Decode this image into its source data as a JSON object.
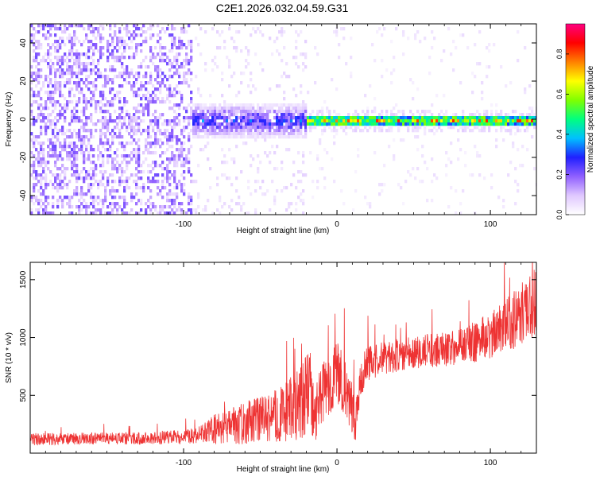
{
  "title": "C2E1.2026.032.04.59.G31",
  "chart_data": [
    {
      "type": "heatmap",
      "title": "",
      "xlabel": "Height of straight line (km)",
      "ylabel": "Frequency (Hz)",
      "xlim": [
        -200,
        130
      ],
      "ylim": [
        -50,
        50
      ],
      "xticks": [
        -100,
        0,
        100
      ],
      "xtick_labels": [
        "-100",
        "0",
        "100"
      ],
      "yticks": [
        -40,
        -20,
        0,
        20,
        40
      ],
      "ytick_labels": [
        "-40",
        "-20",
        "0",
        "20",
        "40"
      ],
      "colorbar": {
        "label": "Normalized spectral amplitude",
        "range": [
          0,
          0.95
        ],
        "ticks": [
          0.0,
          0.2,
          0.4,
          0.6,
          0.8
        ],
        "tick_labels": [
          "0.0",
          "0.2",
          "0.4",
          "0.6",
          "0.8"
        ],
        "colormap": [
          "#ffffff",
          "#e0c8ff",
          "#9060ff",
          "#2020ff",
          "#00c0ff",
          "#00ff80",
          "#80ff00",
          "#ffff00",
          "#ff8000",
          "#ff0000",
          "#ff0080"
        ]
      },
      "regions": [
        {
          "x_range": [
            -200,
            -95
          ],
          "freq_spread": 50,
          "amplitude": 0.08,
          "description_color": "#6a1bff"
        },
        {
          "x_range": [
            -95,
            -20
          ],
          "freq_spread": 10,
          "amplitude": 0.25
        },
        {
          "x_range": [
            -20,
            130
          ],
          "freq_spread": 3,
          "amplitude": 0.6
        }
      ],
      "grid": false
    },
    {
      "type": "line",
      "title": "",
      "xlabel": "Height of straight line (km)",
      "ylabel": "SNR (10 * v/v)",
      "xlim": [
        -200,
        130
      ],
      "ylim": [
        0,
        1650
      ],
      "xticks": [
        -100,
        0,
        100
      ],
      "xtick_labels": [
        "-100",
        "0",
        "100"
      ],
      "yticks": [
        500,
        1000,
        1500
      ],
      "ytick_labels": [
        "500",
        "1000",
        "1500"
      ],
      "color": "#ee3333",
      "x": [
        -200,
        -180,
        -160,
        -140,
        -120,
        -100,
        -90,
        -80,
        -70,
        -60,
        -50,
        -40,
        -30,
        -22,
        -18,
        -15,
        -10,
        -5,
        0,
        5,
        10,
        12,
        15,
        20,
        30,
        40,
        50,
        60,
        70,
        80,
        90,
        100,
        110,
        120,
        130
      ],
      "y": [
        120,
        120,
        125,
        125,
        130,
        140,
        160,
        200,
        230,
        260,
        290,
        320,
        380,
        450,
        600,
        300,
        500,
        620,
        650,
        560,
        400,
        250,
        650,
        780,
        820,
        850,
        870,
        880,
        900,
        930,
        960,
        1020,
        1100,
        1200,
        1300
      ],
      "noise_amplitude": [
        60,
        60,
        60,
        60,
        60,
        70,
        80,
        150,
        180,
        200,
        220,
        260,
        320,
        380,
        500,
        250,
        300,
        320,
        350,
        300,
        250,
        200,
        220,
        180,
        160,
        160,
        160,
        170,
        170,
        180,
        200,
        220,
        260,
        300,
        340
      ],
      "grid": false
    }
  ]
}
